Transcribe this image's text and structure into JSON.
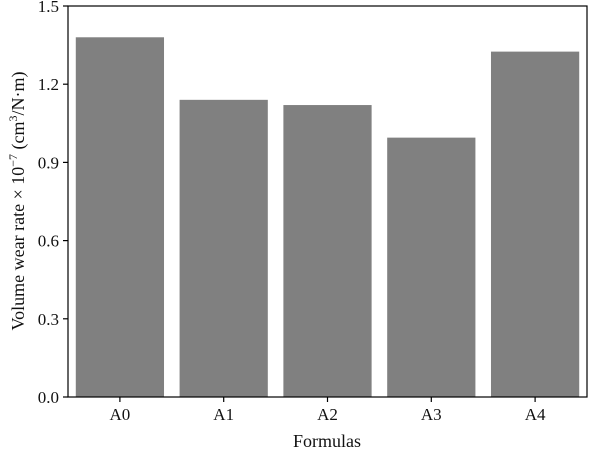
{
  "chart_data": {
    "type": "bar",
    "categories": [
      "A0",
      "A1",
      "A2",
      "A3",
      "A4"
    ],
    "values": [
      1.38,
      1.14,
      1.12,
      0.995,
      1.325
    ],
    "xlabel": "Formulas",
    "ylabel": {
      "prefix": "Volume wear rate × 10",
      "exponent": "−7",
      "unit_open": " (cm",
      "unit_exponent": "3",
      "unit_close": "/N·m)"
    },
    "yticks": [
      "0.0",
      "0.3",
      "0.6",
      "0.9",
      "1.2",
      "1.5"
    ],
    "ylim": [
      0,
      1.5
    ],
    "grid": false,
    "legend": "none",
    "bar_color": "#808080"
  }
}
